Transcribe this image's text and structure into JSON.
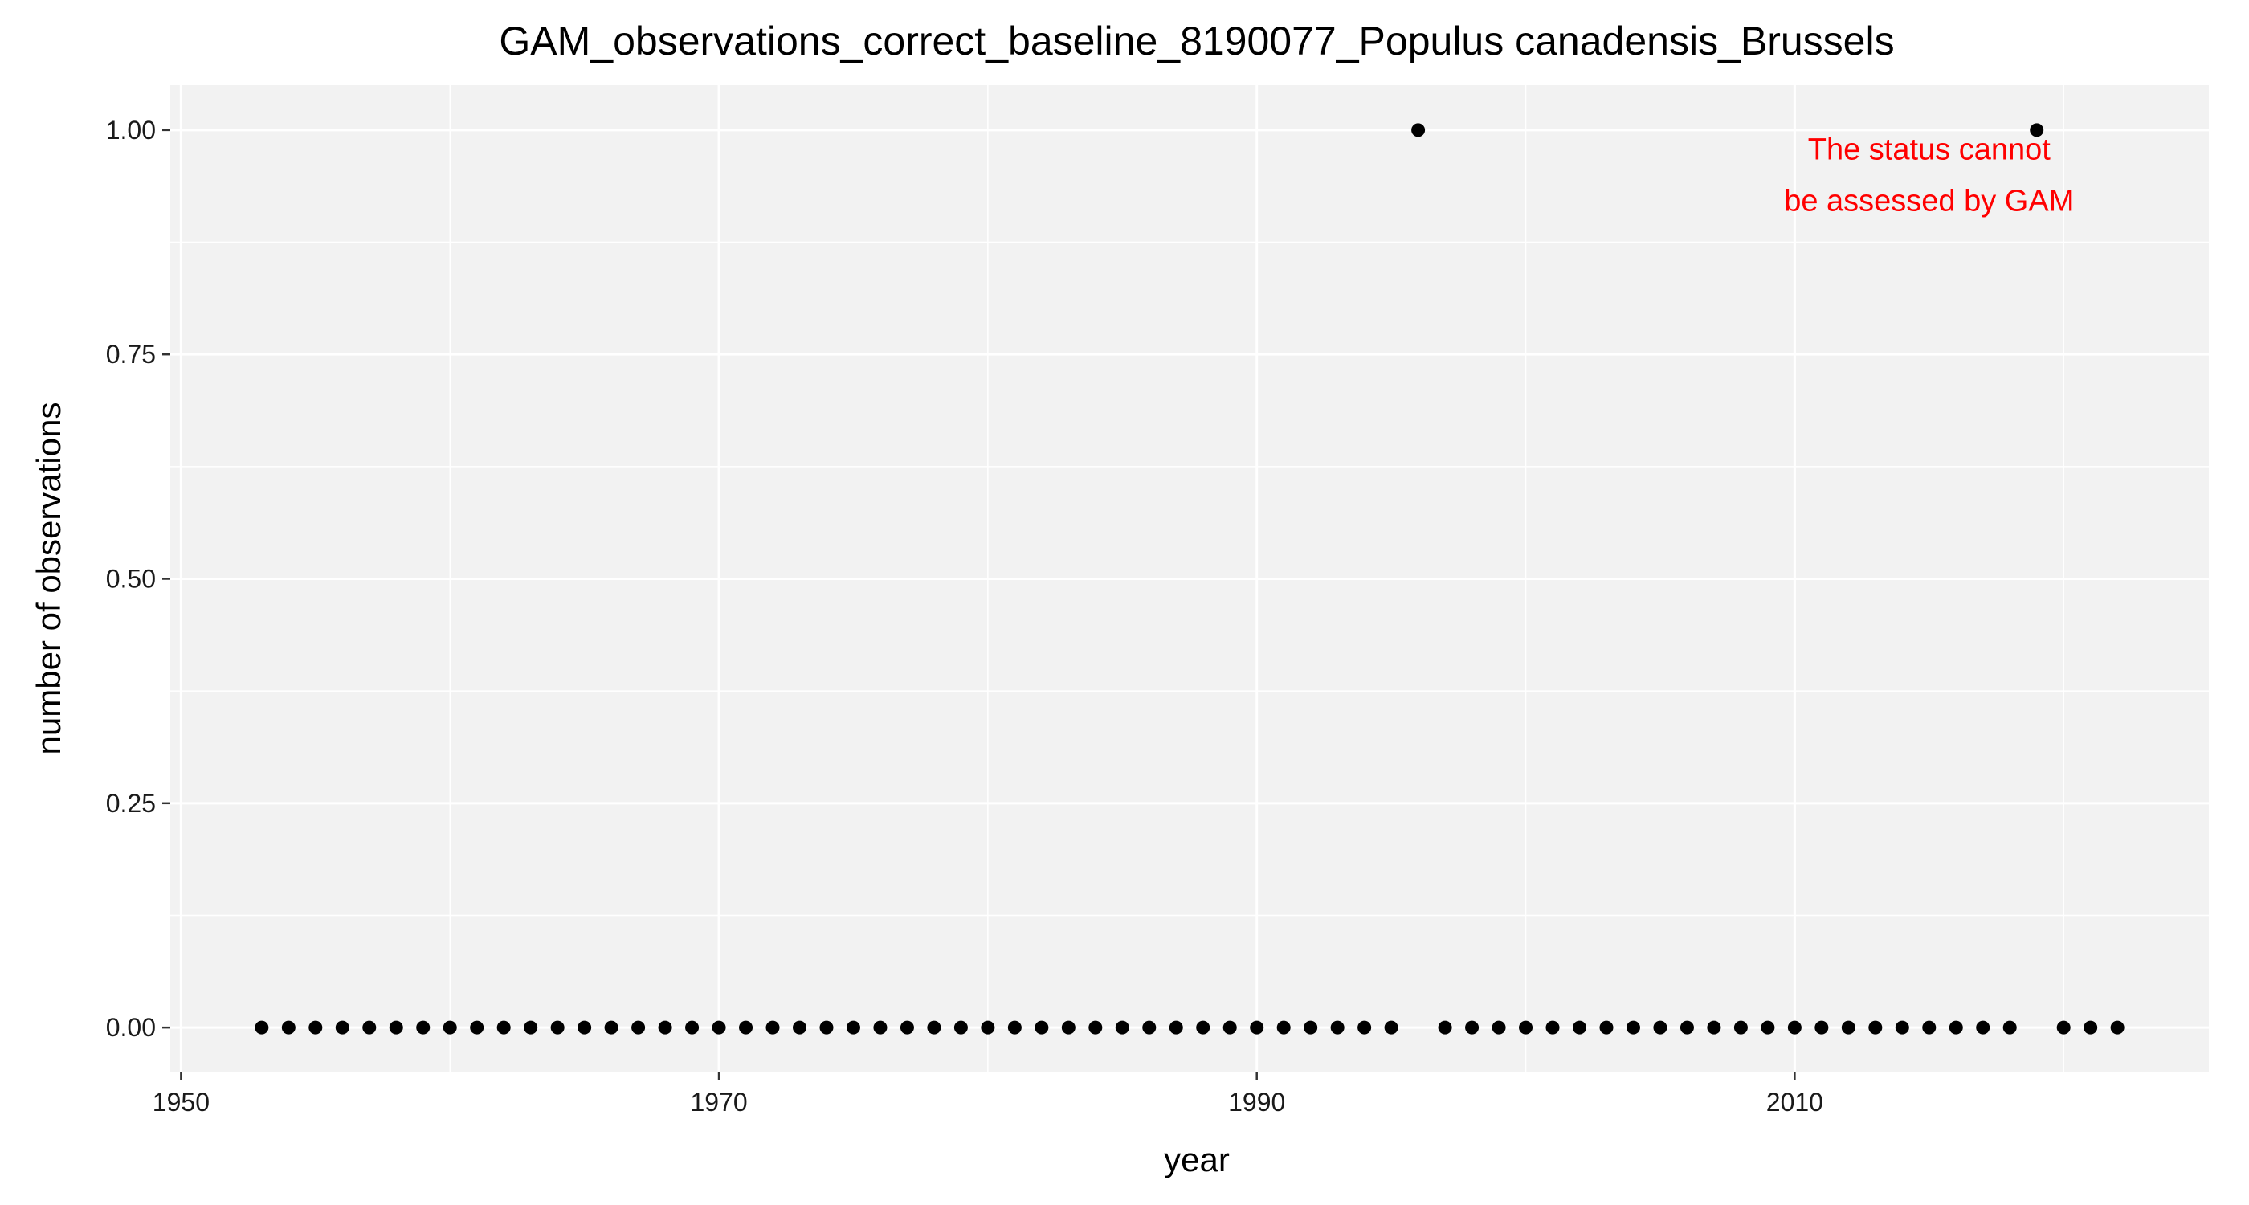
{
  "chart_data": {
    "type": "scatter",
    "title": "GAM_observations_correct_baseline_8190077_Populus canadensis_Brussels",
    "xlabel": "year",
    "ylabel": "number of observations",
    "xlim": [
      1949.6,
      2025.4
    ],
    "ylim": [
      -0.05,
      1.05
    ],
    "x_ticks": [
      1950,
      1970,
      1990,
      2010
    ],
    "x_tick_labels": [
      "1950",
      "1970",
      "1990",
      "2010"
    ],
    "y_ticks": [
      0,
      0.25,
      0.5,
      0.75,
      1
    ],
    "y_tick_labels": [
      "0.00",
      "0.25",
      "0.50",
      "0.75",
      "1.00"
    ],
    "x_minor_ticks": [
      1960,
      1980,
      2000,
      2020
    ],
    "y_minor_ticks": [
      0.125,
      0.375,
      0.625,
      0.875
    ],
    "grid": true,
    "annotation": {
      "lines": [
        "The status cannot",
        "be assessed by GAM"
      ],
      "color": "#ff0000",
      "x": 2015,
      "y": 0.95
    },
    "panel_background": "#f2f2f2",
    "grid_color": "#ffffff",
    "point_color": "#000000",
    "series": [
      {
        "x": [
          1953,
          1954,
          1955,
          1956,
          1957,
          1958,
          1959,
          1960,
          1961,
          1962,
          1963,
          1964,
          1965,
          1966,
          1967,
          1968,
          1969,
          1970,
          1971,
          1972,
          1973,
          1974,
          1975,
          1976,
          1977,
          1978,
          1979,
          1980,
          1981,
          1982,
          1983,
          1984,
          1985,
          1986,
          1987,
          1988,
          1989,
          1990,
          1991,
          1992,
          1993,
          1994,
          1995,
          1996,
          1997,
          1998,
          1999,
          2000,
          2001,
          2002,
          2003,
          2004,
          2005,
          2006,
          2007,
          2008,
          2009,
          2010,
          2011,
          2012,
          2013,
          2014,
          2015,
          2016,
          2017,
          2018,
          2019,
          2020,
          2021,
          2022
        ],
        "y": [
          0,
          0,
          0,
          0,
          0,
          0,
          0,
          0,
          0,
          0,
          0,
          0,
          0,
          0,
          0,
          0,
          0,
          0,
          0,
          0,
          0,
          0,
          0,
          0,
          0,
          0,
          0,
          0,
          0,
          0,
          0,
          0,
          0,
          0,
          0,
          0,
          0,
          0,
          0,
          0,
          0,
          0,
          0,
          1,
          0,
          0,
          0,
          0,
          0,
          0,
          0,
          0,
          0,
          0,
          0,
          0,
          0,
          0,
          0,
          0,
          0,
          0,
          0,
          0,
          0,
          0,
          1,
          0,
          0,
          0
        ]
      }
    ]
  }
}
